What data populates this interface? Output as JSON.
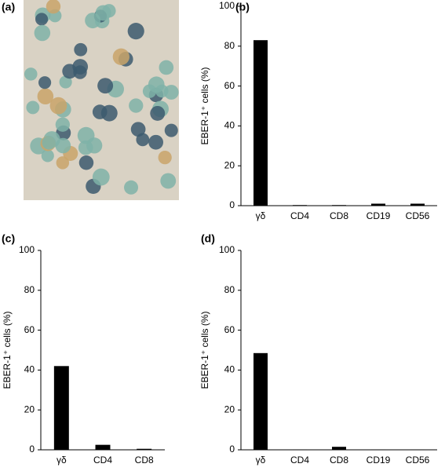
{
  "panel_a": {
    "label": "(a)"
  },
  "chart_data": [
    {
      "type": "bar",
      "panel_label": "(b)",
      "y_label": "EBER-1⁺ cells (%)",
      "categories": [
        "γδ",
        "CD4",
        "CD8",
        "CD19",
        "CD56"
      ],
      "values": [
        83,
        0.3,
        0.3,
        1,
        1
      ],
      "color": "#000000",
      "ylim": [
        0,
        100
      ],
      "yticks": [
        0,
        20,
        40,
        60,
        80,
        100
      ]
    },
    {
      "type": "bar",
      "panel_label": "(c)",
      "y_label": "EBER-1⁺ cells (%)",
      "categories": [
        "γδ",
        "CD4",
        "CD8"
      ],
      "values": [
        42,
        2.5,
        0.5
      ],
      "color": "#000000",
      "ylim": [
        0,
        100
      ],
      "yticks": [
        0,
        20,
        40,
        60,
        80,
        100
      ]
    },
    {
      "type": "bar",
      "panel_label": "(d)",
      "y_label": "EBER-1⁺ cells (%)",
      "categories": [
        "γδ",
        "CD4",
        "CD8",
        "CD19",
        "CD56"
      ],
      "values": [
        48.5,
        0.2,
        1.5,
        0.2,
        0.2
      ],
      "color": "#000000",
      "ylim": [
        0,
        100
      ],
      "yticks": [
        0,
        20,
        40,
        60,
        80,
        100
      ]
    }
  ]
}
